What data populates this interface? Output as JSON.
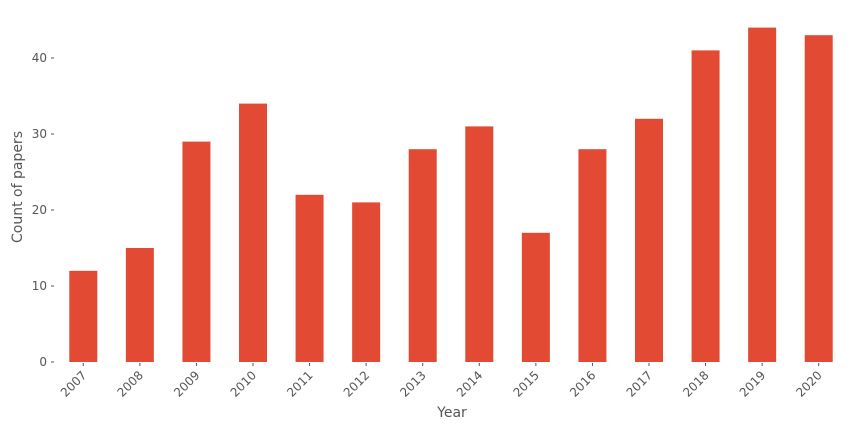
{
  "chart_data": {
    "type": "bar",
    "title": "",
    "xlabel": "Year",
    "ylabel": "Count of papers",
    "categories": [
      "2007",
      "2008",
      "2009",
      "2010",
      "2011",
      "2012",
      "2013",
      "2014",
      "2015",
      "2016",
      "2017",
      "2018",
      "2019",
      "2020"
    ],
    "values": [
      12,
      15,
      29,
      34,
      22,
      21,
      28,
      31,
      17,
      28,
      32,
      41,
      44,
      43
    ],
    "ylim": [
      0,
      46
    ],
    "yticks": [
      0,
      10,
      20,
      30,
      40
    ],
    "grid": false,
    "legend": "none",
    "colors": {
      "bar": "#E24A33",
      "text": "#555555",
      "background": "#FFFFFF"
    }
  }
}
